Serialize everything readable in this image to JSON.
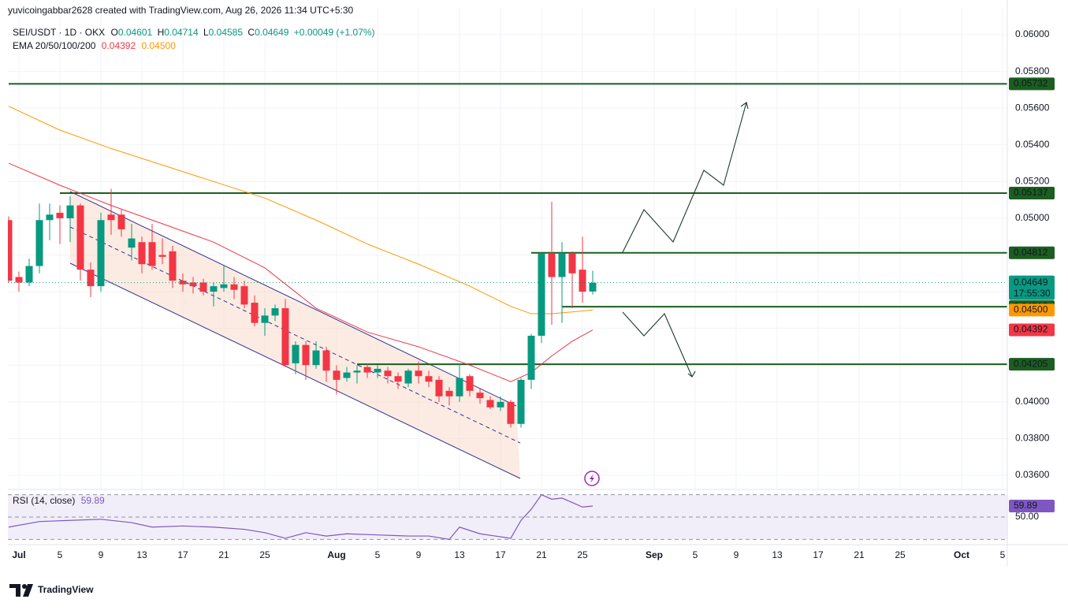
{
  "header": {
    "credit": "yuvicoingabbar2628 created with TradingView.com, Aug 26, 2026 11:34 UTC+5:30",
    "logo": "TradingView"
  },
  "chart_data": [
    {
      "type": "candlestick",
      "symbol": "SEI/USDT · 1D · OKX",
      "ohlc_labels": [
        "O",
        "H",
        "L",
        "C"
      ],
      "change": "+0.00049 (+1.07%)",
      "ema_label": "EMA 20/50/100/200",
      "up_color": "#089981",
      "down_color": "#f23645",
      "x": [
        "2026-06-30",
        "2026-07-01",
        "2026-07-02",
        "2026-07-03",
        "2026-07-04",
        "2026-07-05",
        "2026-07-06",
        "2026-07-07",
        "2026-07-08",
        "2026-07-09",
        "2026-07-10",
        "2026-07-11",
        "2026-07-12",
        "2026-07-13",
        "2026-07-14",
        "2026-07-15",
        "2026-07-16",
        "2026-07-17",
        "2026-07-18",
        "2026-07-19",
        "2026-07-20",
        "2026-07-21",
        "2026-07-22",
        "2026-07-23",
        "2026-07-24",
        "2026-07-25",
        "2026-07-26",
        "2026-07-27",
        "2026-07-28",
        "2026-07-29",
        "2026-07-30",
        "2026-07-31",
        "2026-08-01",
        "2026-08-02",
        "2026-08-03",
        "2026-08-04",
        "2026-08-05",
        "2026-08-06",
        "2026-08-07",
        "2026-08-08",
        "2026-08-09",
        "2026-08-10",
        "2026-08-11",
        "2026-08-12",
        "2026-08-13",
        "2026-08-14",
        "2026-08-15",
        "2026-08-16",
        "2026-08-17",
        "2026-08-18",
        "2026-08-19",
        "2026-08-20",
        "2026-08-21",
        "2026-08-22",
        "2026-08-23",
        "2026-08-24",
        "2026-08-25",
        "2026-08-26"
      ],
      "open": [
        0.0499,
        0.0468,
        0.0465,
        0.0474,
        0.0499,
        0.0503,
        0.05,
        0.0507,
        0.0472,
        0.0463,
        0.0502,
        0.0502,
        0.0484,
        0.0487,
        0.0487,
        0.048,
        0.0482,
        0.0466,
        0.0465,
        0.0465,
        0.046,
        0.0462,
        0.0464,
        0.0463,
        0.0454,
        0.0443,
        0.0447,
        0.0451,
        0.0421,
        0.0431,
        0.042,
        0.0428,
        0.0417,
        0.0413,
        0.0416,
        0.0419,
        0.0416,
        0.0417,
        0.0414,
        0.041,
        0.0417,
        0.0414,
        0.0412,
        0.0406,
        0.0403,
        0.0414,
        0.0405,
        0.0401,
        0.0397,
        0.04,
        0.0388,
        0.0412,
        0.0436,
        0.0481,
        0.0468,
        0.0481,
        0.0472,
        0.04601
      ],
      "high": [
        0.0501,
        0.0471,
        0.0478,
        0.0508,
        0.0508,
        0.0507,
        0.0512,
        0.0508,
        0.0476,
        0.0503,
        0.0516,
        0.0505,
        0.0497,
        0.049,
        0.0497,
        0.0489,
        0.0485,
        0.047,
        0.0468,
        0.0467,
        0.0465,
        0.0474,
        0.0468,
        0.0466,
        0.0458,
        0.0451,
        0.0453,
        0.0456,
        0.0433,
        0.0433,
        0.0433,
        0.043,
        0.042,
        0.0419,
        0.042,
        0.0421,
        0.042,
        0.0419,
        0.0416,
        0.0418,
        0.0422,
        0.0417,
        0.0414,
        0.0408,
        0.0421,
        0.0415,
        0.0407,
        0.0403,
        0.0403,
        0.0401,
        0.0413,
        0.0437,
        0.0481,
        0.0509,
        0.0487,
        0.0482,
        0.049,
        0.04714
      ],
      "low": [
        0.0465,
        0.046,
        0.0463,
        0.047,
        0.0488,
        0.0486,
        0.0487,
        0.0466,
        0.0457,
        0.046,
        0.0491,
        0.049,
        0.0477,
        0.047,
        0.0472,
        0.0475,
        0.0462,
        0.046,
        0.0459,
        0.0458,
        0.0452,
        0.046,
        0.0456,
        0.0451,
        0.0441,
        0.0436,
        0.0444,
        0.0419,
        0.0415,
        0.0412,
        0.0418,
        0.0411,
        0.0404,
        0.0411,
        0.041,
        0.0413,
        0.0413,
        0.041,
        0.0407,
        0.0408,
        0.041,
        0.0408,
        0.04,
        0.0398,
        0.04,
        0.0403,
        0.0399,
        0.0396,
        0.0395,
        0.0386,
        0.0386,
        0.0407,
        0.0432,
        0.0442,
        0.0443,
        0.0451,
        0.0454,
        0.04585
      ],
      "close": [
        0.0466,
        0.0465,
        0.0474,
        0.0499,
        0.0502,
        0.05,
        0.0507,
        0.0472,
        0.0463,
        0.0499,
        0.0499,
        0.0494,
        0.0489,
        0.0475,
        0.0474,
        0.0479,
        0.0466,
        0.0464,
        0.0463,
        0.046,
        0.0463,
        0.0464,
        0.0461,
        0.0453,
        0.0443,
        0.0447,
        0.0451,
        0.042,
        0.0431,
        0.042,
        0.0428,
        0.0417,
        0.0412,
        0.0416,
        0.0417,
        0.0416,
        0.0418,
        0.0414,
        0.0411,
        0.0417,
        0.0414,
        0.0411,
        0.0403,
        0.0403,
        0.0413,
        0.0406,
        0.0402,
        0.0397,
        0.04,
        0.0388,
        0.0412,
        0.0436,
        0.0481,
        0.0468,
        0.0481,
        0.047,
        0.046,
        0.04649
      ],
      "countdown": "17:55:30",
      "series": [
        {
          "color": "#f23645",
          "last_label": "0.04392",
          "x": [
            "2026-06-30",
            "2026-07-05",
            "2026-07-10",
            "2026-07-15",
            "2026-07-20",
            "2026-07-25",
            "2026-07-30",
            "2026-08-04",
            "2026-08-09",
            "2026-08-14",
            "2026-08-18",
            "2026-08-20",
            "2026-08-22",
            "2026-08-24",
            "2026-08-26"
          ],
          "values": [
            0.053,
            0.0518,
            0.0507,
            0.0497,
            0.0487,
            0.0473,
            0.0451,
            0.0438,
            0.043,
            0.042,
            0.0411,
            0.0416,
            0.0425,
            0.0433,
            0.04392
          ]
        },
        {
          "color": "#ff9800",
          "last_label": "0.04500",
          "x": [
            "2026-06-30",
            "2026-07-05",
            "2026-07-10",
            "2026-07-15",
            "2026-07-20",
            "2026-07-25",
            "2026-07-30",
            "2026-08-04",
            "2026-08-09",
            "2026-08-14",
            "2026-08-18",
            "2026-08-20",
            "2026-08-22",
            "2026-08-24",
            "2026-08-26"
          ],
          "values": [
            0.0561,
            0.0548,
            0.0538,
            0.0529,
            0.052,
            0.0511,
            0.0499,
            0.0486,
            0.0475,
            0.0463,
            0.0452,
            0.0448,
            0.0448,
            0.0449,
            0.045
          ]
        }
      ],
      "level_color": "#1b5e20",
      "levels": [
        {
          "value": 0.05732,
          "start": "2026-06-30"
        },
        {
          "value": 0.05137,
          "start": "2026-07-05"
        },
        {
          "value": 0.04812,
          "start": "2026-08-20"
        },
        {
          "value": 0.04518,
          "start": "2026-08-23"
        },
        {
          "value": 0.04205,
          "start": "2026-08-03"
        }
      ],
      "xlim": [
        "2026-06-30",
        "2026-10-06"
      ],
      "xticks": [
        {
          "value": "2026-07-01",
          "label": "Jul"
        },
        {
          "value": "2026-07-05",
          "label": "5"
        },
        {
          "value": "2026-07-09",
          "label": "9"
        },
        {
          "value": "2026-07-13",
          "label": "13"
        },
        {
          "value": "2026-07-17",
          "label": "17"
        },
        {
          "value": "2026-07-21",
          "label": "21"
        },
        {
          "value": "2026-07-25",
          "label": "25"
        },
        {
          "value": "2026-08-01",
          "label": "Aug"
        },
        {
          "value": "2026-08-05",
          "label": "5"
        },
        {
          "value": "2026-08-09",
          "label": "9"
        },
        {
          "value": "2026-08-13",
          "label": "13"
        },
        {
          "value": "2026-08-17",
          "label": "17"
        },
        {
          "value": "2026-08-21",
          "label": "21"
        },
        {
          "value": "2026-08-25",
          "label": "25"
        },
        {
          "value": "2026-09-01",
          "label": "Sep"
        },
        {
          "value": "2026-09-05",
          "label": "5"
        },
        {
          "value": "2026-09-09",
          "label": "9"
        },
        {
          "value": "2026-09-13",
          "label": "13"
        },
        {
          "value": "2026-09-17",
          "label": "17"
        },
        {
          "value": "2026-09-21",
          "label": "21"
        },
        {
          "value": "2026-09-25",
          "label": "25"
        },
        {
          "value": "2026-10-01",
          "label": "Oct"
        },
        {
          "value": "2026-10-05",
          "label": "5"
        }
      ],
      "ylim": [
        0.03527,
        0.06146
      ],
      "yticks": [
        {
          "value": 0.036,
          "label": "0.03600"
        },
        {
          "value": 0.038,
          "label": "0.03800"
        },
        {
          "value": 0.04,
          "label": "0.04000"
        },
        {
          "value": 0.042,
          "label": "0.04200"
        },
        {
          "value": 0.044,
          "label": "0.04400"
        },
        {
          "value": 0.046,
          "label": "0.04600"
        },
        {
          "value": 0.048,
          "label": "0.04800"
        },
        {
          "value": 0.05,
          "label": "0.05000"
        },
        {
          "value": 0.052,
          "label": "0.05200"
        },
        {
          "value": 0.054,
          "label": "0.05400"
        },
        {
          "value": 0.056,
          "label": "0.05600"
        },
        {
          "value": 0.058,
          "label": "0.05800"
        },
        {
          "value": 0.06,
          "label": "0.06000"
        }
      ],
      "grid": true
    },
    {
      "type": "line",
      "title": "RSI (14, close)",
      "color": "#7e57c2",
      "x": [
        "2026-06-30",
        "2026-07-03",
        "2026-07-06",
        "2026-07-09",
        "2026-07-12",
        "2026-07-14",
        "2026-07-17",
        "2026-07-20",
        "2026-07-23",
        "2026-07-25",
        "2026-07-27",
        "2026-07-29",
        "2026-07-31",
        "2026-08-02",
        "2026-08-05",
        "2026-08-08",
        "2026-08-10",
        "2026-08-12",
        "2026-08-13",
        "2026-08-15",
        "2026-08-18",
        "2026-08-19",
        "2026-08-20",
        "2026-08-21",
        "2026-08-22",
        "2026-08-23",
        "2026-08-24",
        "2026-08-25",
        "2026-08-26"
      ],
      "values": [
        41,
        46,
        47,
        48,
        45,
        41,
        42,
        41,
        39,
        36,
        31,
        36,
        33,
        35,
        34,
        33,
        33,
        30,
        41,
        35,
        31,
        47,
        57,
        70,
        66,
        67,
        63,
        59,
        59.89
      ],
      "levels": [
        70,
        50,
        30
      ],
      "ylim": [
        26,
        74
      ],
      "yticks": [
        {
          "value": 50,
          "label": "50.00"
        }
      ]
    }
  ]
}
